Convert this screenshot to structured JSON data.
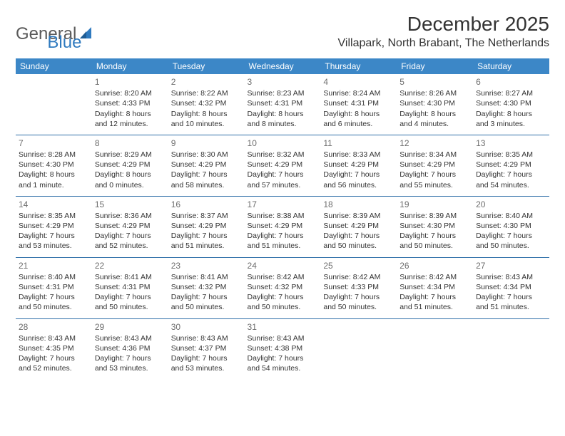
{
  "brand": {
    "part1": "General",
    "part2": "Blue"
  },
  "title": "December 2025",
  "location": "Villapark, North Brabant, The Netherlands",
  "colors": {
    "header_bg": "#3c87c7",
    "header_fg": "#ffffff",
    "row_border": "#2f6fa8",
    "daynum": "#6e6e6e",
    "text": "#333333",
    "logo_gray": "#5a5a5a",
    "logo_blue": "#2f7abf",
    "background": "#ffffff"
  },
  "typography": {
    "title_fontsize": 28,
    "location_fontsize": 16,
    "header_fontsize": 12,
    "cell_fontsize": 10.5,
    "daynum_fontsize": 12
  },
  "day_headers": [
    "Sunday",
    "Monday",
    "Tuesday",
    "Wednesday",
    "Thursday",
    "Friday",
    "Saturday"
  ],
  "weeks": [
    [
      null,
      {
        "n": "1",
        "sr": "Sunrise: 8:20 AM",
        "ss": "Sunset: 4:33 PM",
        "dl": "Daylight: 8 hours and 12 minutes."
      },
      {
        "n": "2",
        "sr": "Sunrise: 8:22 AM",
        "ss": "Sunset: 4:32 PM",
        "dl": "Daylight: 8 hours and 10 minutes."
      },
      {
        "n": "3",
        "sr": "Sunrise: 8:23 AM",
        "ss": "Sunset: 4:31 PM",
        "dl": "Daylight: 8 hours and 8 minutes."
      },
      {
        "n": "4",
        "sr": "Sunrise: 8:24 AM",
        "ss": "Sunset: 4:31 PM",
        "dl": "Daylight: 8 hours and 6 minutes."
      },
      {
        "n": "5",
        "sr": "Sunrise: 8:26 AM",
        "ss": "Sunset: 4:30 PM",
        "dl": "Daylight: 8 hours and 4 minutes."
      },
      {
        "n": "6",
        "sr": "Sunrise: 8:27 AM",
        "ss": "Sunset: 4:30 PM",
        "dl": "Daylight: 8 hours and 3 minutes."
      }
    ],
    [
      {
        "n": "7",
        "sr": "Sunrise: 8:28 AM",
        "ss": "Sunset: 4:30 PM",
        "dl": "Daylight: 8 hours and 1 minute."
      },
      {
        "n": "8",
        "sr": "Sunrise: 8:29 AM",
        "ss": "Sunset: 4:29 PM",
        "dl": "Daylight: 8 hours and 0 minutes."
      },
      {
        "n": "9",
        "sr": "Sunrise: 8:30 AM",
        "ss": "Sunset: 4:29 PM",
        "dl": "Daylight: 7 hours and 58 minutes."
      },
      {
        "n": "10",
        "sr": "Sunrise: 8:32 AM",
        "ss": "Sunset: 4:29 PM",
        "dl": "Daylight: 7 hours and 57 minutes."
      },
      {
        "n": "11",
        "sr": "Sunrise: 8:33 AM",
        "ss": "Sunset: 4:29 PM",
        "dl": "Daylight: 7 hours and 56 minutes."
      },
      {
        "n": "12",
        "sr": "Sunrise: 8:34 AM",
        "ss": "Sunset: 4:29 PM",
        "dl": "Daylight: 7 hours and 55 minutes."
      },
      {
        "n": "13",
        "sr": "Sunrise: 8:35 AM",
        "ss": "Sunset: 4:29 PM",
        "dl": "Daylight: 7 hours and 54 minutes."
      }
    ],
    [
      {
        "n": "14",
        "sr": "Sunrise: 8:35 AM",
        "ss": "Sunset: 4:29 PM",
        "dl": "Daylight: 7 hours and 53 minutes."
      },
      {
        "n": "15",
        "sr": "Sunrise: 8:36 AM",
        "ss": "Sunset: 4:29 PM",
        "dl": "Daylight: 7 hours and 52 minutes."
      },
      {
        "n": "16",
        "sr": "Sunrise: 8:37 AM",
        "ss": "Sunset: 4:29 PM",
        "dl": "Daylight: 7 hours and 51 minutes."
      },
      {
        "n": "17",
        "sr": "Sunrise: 8:38 AM",
        "ss": "Sunset: 4:29 PM",
        "dl": "Daylight: 7 hours and 51 minutes."
      },
      {
        "n": "18",
        "sr": "Sunrise: 8:39 AM",
        "ss": "Sunset: 4:29 PM",
        "dl": "Daylight: 7 hours and 50 minutes."
      },
      {
        "n": "19",
        "sr": "Sunrise: 8:39 AM",
        "ss": "Sunset: 4:30 PM",
        "dl": "Daylight: 7 hours and 50 minutes."
      },
      {
        "n": "20",
        "sr": "Sunrise: 8:40 AM",
        "ss": "Sunset: 4:30 PM",
        "dl": "Daylight: 7 hours and 50 minutes."
      }
    ],
    [
      {
        "n": "21",
        "sr": "Sunrise: 8:40 AM",
        "ss": "Sunset: 4:31 PM",
        "dl": "Daylight: 7 hours and 50 minutes."
      },
      {
        "n": "22",
        "sr": "Sunrise: 8:41 AM",
        "ss": "Sunset: 4:31 PM",
        "dl": "Daylight: 7 hours and 50 minutes."
      },
      {
        "n": "23",
        "sr": "Sunrise: 8:41 AM",
        "ss": "Sunset: 4:32 PM",
        "dl": "Daylight: 7 hours and 50 minutes."
      },
      {
        "n": "24",
        "sr": "Sunrise: 8:42 AM",
        "ss": "Sunset: 4:32 PM",
        "dl": "Daylight: 7 hours and 50 minutes."
      },
      {
        "n": "25",
        "sr": "Sunrise: 8:42 AM",
        "ss": "Sunset: 4:33 PM",
        "dl": "Daylight: 7 hours and 50 minutes."
      },
      {
        "n": "26",
        "sr": "Sunrise: 8:42 AM",
        "ss": "Sunset: 4:34 PM",
        "dl": "Daylight: 7 hours and 51 minutes."
      },
      {
        "n": "27",
        "sr": "Sunrise: 8:43 AM",
        "ss": "Sunset: 4:34 PM",
        "dl": "Daylight: 7 hours and 51 minutes."
      }
    ],
    [
      {
        "n": "28",
        "sr": "Sunrise: 8:43 AM",
        "ss": "Sunset: 4:35 PM",
        "dl": "Daylight: 7 hours and 52 minutes."
      },
      {
        "n": "29",
        "sr": "Sunrise: 8:43 AM",
        "ss": "Sunset: 4:36 PM",
        "dl": "Daylight: 7 hours and 53 minutes."
      },
      {
        "n": "30",
        "sr": "Sunrise: 8:43 AM",
        "ss": "Sunset: 4:37 PM",
        "dl": "Daylight: 7 hours and 53 minutes."
      },
      {
        "n": "31",
        "sr": "Sunrise: 8:43 AM",
        "ss": "Sunset: 4:38 PM",
        "dl": "Daylight: 7 hours and 54 minutes."
      },
      null,
      null,
      null
    ]
  ]
}
